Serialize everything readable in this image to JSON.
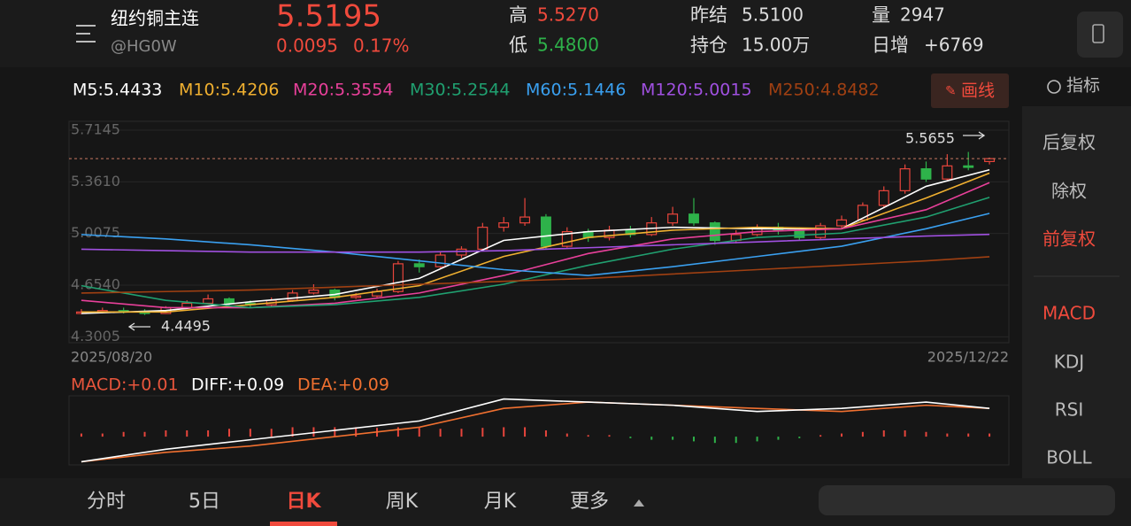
{
  "header": {
    "name": "纽约铜主连",
    "code": "@HG0W",
    "price": "5.5195",
    "change": "0.0095",
    "change_pct": "0.17%",
    "high_label": "高",
    "high": "5.5270",
    "low_label": "低",
    "low": "5.4800",
    "prev_settle_label": "昨结",
    "prev_settle": "5.5100",
    "open_interest_label": "持仓",
    "open_interest": "15.00万",
    "volume_label": "量",
    "volume": "2947",
    "daily_change_label": "日增",
    "daily_change": "+6769"
  },
  "ma_legend": [
    {
      "text": "M5:5.4433",
      "color": "#ffffff"
    },
    {
      "text": "M10:5.4206",
      "color": "#f0b030"
    },
    {
      "text": "M20:5.3554",
      "color": "#e8409a"
    },
    {
      "text": "M30:5.2544",
      "color": "#20a070"
    },
    {
      "text": "M60:5.1446",
      "color": "#3aa0f0"
    },
    {
      "text": "M120:5.0015",
      "color": "#a050e0"
    },
    {
      "text": "M250:4.8482",
      "color": "#a04012"
    }
  ],
  "draw_button": "画线",
  "indicator_button": "指标",
  "chart_data": {
    "type": "candlestick",
    "ylim": [
      4.26,
      5.775
    ],
    "yticks": [
      5.7145,
      {
        "value": 5.361,
        "label": "5.3610"
      },
      5.0075,
      {
        "value": 4.654,
        "label": "4.6540"
      },
      4.3005
    ],
    "x_start": "2025/08/20",
    "x_end": "2025/12/22",
    "up_color": "#e8453c",
    "down_color": "#2eb24a",
    "open": [
      4.46,
      4.47,
      4.48,
      4.47,
      4.46,
      4.5,
      4.53,
      4.56,
      4.53,
      4.52,
      4.55,
      4.6,
      4.62,
      4.57,
      4.58,
      4.61,
      4.8,
      4.78,
      4.86,
      4.9,
      5.05,
      5.08,
      5.12,
      4.92,
      5.02,
      4.98,
      5.03,
      5.0,
      5.08,
      5.14,
      5.08,
      4.96,
      5.0,
      5.05,
      5.03,
      4.98,
      5.06,
      5.1,
      5.2,
      5.3,
      5.45,
      5.38,
      5.47,
      5.5
    ],
    "close": [
      4.47,
      4.48,
      4.47,
      4.46,
      4.5,
      4.53,
      4.56,
      4.53,
      4.52,
      4.55,
      4.6,
      4.62,
      4.57,
      4.58,
      4.61,
      4.8,
      4.78,
      4.86,
      4.9,
      5.05,
      5.08,
      5.12,
      4.92,
      5.02,
      4.98,
      5.03,
      5.0,
      5.08,
      5.14,
      5.08,
      4.96,
      5.0,
      5.05,
      5.03,
      4.98,
      5.06,
      5.1,
      5.2,
      5.3,
      5.45,
      5.38,
      5.47,
      5.46,
      5.5195
    ],
    "high": [
      4.49,
      4.5,
      4.5,
      4.49,
      4.51,
      4.55,
      4.59,
      4.57,
      4.55,
      4.57,
      4.62,
      4.66,
      4.63,
      4.6,
      4.63,
      4.82,
      4.83,
      4.88,
      4.92,
      5.08,
      5.12,
      5.25,
      5.14,
      5.05,
      5.04,
      5.06,
      5.06,
      5.12,
      5.19,
      5.25,
      5.09,
      5.03,
      5.07,
      5.08,
      5.05,
      5.08,
      5.13,
      5.22,
      5.33,
      5.48,
      5.5,
      5.55,
      5.5655,
      5.527
    ],
    "low": [
      4.455,
      4.46,
      4.46,
      4.4495,
      4.46,
      4.49,
      4.52,
      4.51,
      4.5,
      4.51,
      4.54,
      4.59,
      4.55,
      4.56,
      4.57,
      4.6,
      4.74,
      4.77,
      4.84,
      4.89,
      5.02,
      5.06,
      4.9,
      4.91,
      4.95,
      4.96,
      4.98,
      4.99,
      5.06,
      5.06,
      4.93,
      4.94,
      4.99,
      5.0,
      4.96,
      4.97,
      5.04,
      5.09,
      5.18,
      5.28,
      5.36,
      5.37,
      5.44,
      5.48
    ],
    "ma_x": [
      0,
      4,
      8,
      12,
      16,
      20,
      24,
      28,
      32,
      36,
      40,
      43
    ],
    "ma": [
      {
        "name": "M5",
        "color": "#ffffff",
        "values": [
          4.46,
          4.48,
          4.54,
          4.59,
          4.7,
          4.96,
          5.02,
          5.05,
          5.04,
          5.04,
          5.33,
          5.4433
        ]
      },
      {
        "name": "M10",
        "color": "#f0b030",
        "values": [
          4.47,
          4.47,
          4.52,
          4.57,
          4.65,
          4.85,
          4.98,
          5.03,
          5.05,
          5.04,
          5.25,
          5.4206
        ]
      },
      {
        "name": "M20",
        "color": "#e8409a",
        "values": [
          4.55,
          4.5,
          4.5,
          4.53,
          4.6,
          4.72,
          4.87,
          4.97,
          5.02,
          5.04,
          5.17,
          5.3554
        ]
      },
      {
        "name": "M30",
        "color": "#20a070",
        "values": [
          4.65,
          4.55,
          4.5,
          4.52,
          4.57,
          4.66,
          4.79,
          4.9,
          4.98,
          5.01,
          5.12,
          5.2544
        ]
      },
      {
        "name": "M60",
        "color": "#3aa0f0",
        "values": [
          5.0,
          4.97,
          4.93,
          4.88,
          4.82,
          4.76,
          4.72,
          4.78,
          4.85,
          4.92,
          5.04,
          5.1446
        ]
      },
      {
        "name": "M120",
        "color": "#a050e0",
        "values": [
          4.9,
          4.89,
          4.88,
          4.88,
          4.88,
          4.89,
          4.91,
          4.93,
          4.95,
          4.97,
          4.99,
          5.0015
        ]
      },
      {
        "name": "M250",
        "color": "#a04012",
        "values": [
          4.6,
          4.61,
          4.62,
          4.64,
          4.66,
          4.68,
          4.7,
          4.73,
          4.76,
          4.79,
          4.82,
          4.8482
        ]
      }
    ],
    "max_label": 5.5655,
    "min_label": 4.4495,
    "macd": {
      "legend": [
        {
          "text": "MACD:+0.01",
          "color": "#e8553c"
        },
        {
          "text": "DIFF:+0.09",
          "color": "#ffffff"
        },
        {
          "text": "DEA:+0.09",
          "color": "#f07030"
        }
      ],
      "ylim": [
        -0.09,
        0.13
      ],
      "hist": [
        0.01,
        0.01,
        0.015,
        0.015,
        0.02,
        0.02,
        0.02,
        0.025,
        0.025,
        0.025,
        0.03,
        0.03,
        0.03,
        0.03,
        0.028,
        0.03,
        0.028,
        0.025,
        0.025,
        0.028,
        0.03,
        0.03,
        0.02,
        0.01,
        0.005,
        0.005,
        -0.005,
        -0.01,
        -0.01,
        -0.015,
        -0.02,
        -0.02,
        -0.015,
        -0.01,
        -0.005,
        0.005,
        0.01,
        0.015,
        0.02,
        0.02,
        0.015,
        0.01,
        0.01,
        0.01
      ],
      "diff": {
        "color": "#ffffff",
        "values": [
          -0.08,
          -0.04,
          -0.01,
          0.02,
          0.05,
          0.12,
          0.11,
          0.1,
          0.08,
          0.09,
          0.11,
          0.09
        ]
      },
      "dea": {
        "color": "#f07030",
        "values": [
          -0.08,
          -0.05,
          -0.03,
          0.0,
          0.03,
          0.09,
          0.11,
          0.1,
          0.09,
          0.08,
          0.1,
          0.09
        ]
      }
    }
  },
  "sidebar": [
    "后复权",
    "除权",
    "前复权",
    "MACD",
    "KDJ",
    "RSI",
    "BOLL"
  ],
  "tabs": [
    "分时",
    "5日",
    "日K",
    "周K",
    "月K",
    "更多"
  ]
}
